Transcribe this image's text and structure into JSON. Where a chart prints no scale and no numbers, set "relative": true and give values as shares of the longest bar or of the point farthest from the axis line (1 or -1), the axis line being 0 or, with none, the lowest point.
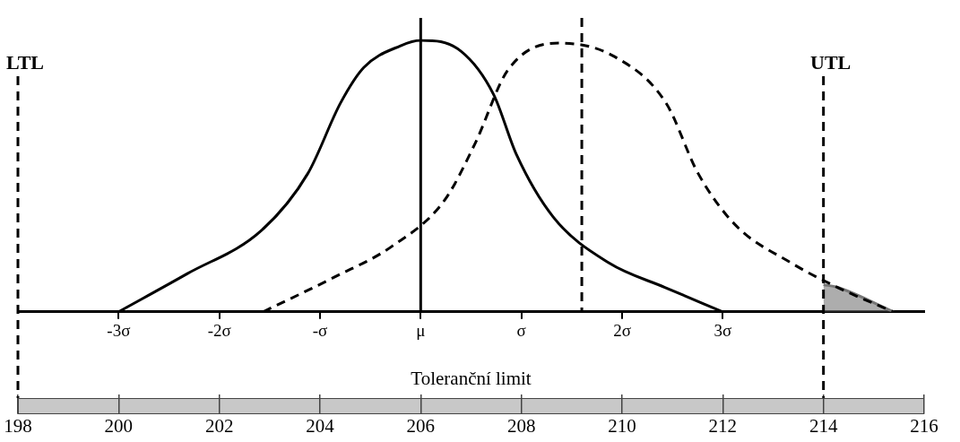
{
  "chart_data": {
    "type": "line",
    "relative": true,
    "xlabel": "Toleranční limit",
    "xlim": [
      198,
      216
    ],
    "xticks": [
      198,
      200,
      202,
      204,
      206,
      208,
      210,
      212,
      214,
      216
    ],
    "x2lim": [
      -4,
      5
    ],
    "x2ticks": [
      {
        "value": -3,
        "label": "-3σ"
      },
      {
        "value": -2,
        "label": "-2σ"
      },
      {
        "value": -1,
        "label": "-σ"
      },
      {
        "value": 0,
        "label": "μ"
      },
      {
        "value": 1,
        "label": "σ"
      },
      {
        "value": 2,
        "label": "2σ"
      },
      {
        "value": 3,
        "label": "3σ"
      }
    ],
    "series": [
      {
        "color": "#000000",
        "line_style": "solid",
        "x": [
          200,
          201.36,
          202.84,
          203.76,
          204.41,
          204.87,
          205.6,
          206,
          206.8,
          207.45,
          207.9,
          208.63,
          209.74,
          210.85,
          212
        ],
        "values": [
          0,
          0.14,
          0.3,
          0.51,
          0.77,
          0.9,
          0.98,
          1,
          0.96,
          0.8,
          0.58,
          0.35,
          0.18,
          0.09,
          0
        ]
      },
      {
        "color": "#000000",
        "line_style": "dashed",
        "x": [
          202.87,
          204.31,
          205.42,
          206.47,
          207.08,
          207.73,
          208.74,
          209.85,
          210.87,
          211.51,
          212.25,
          213.36,
          214.28,
          215.39
        ],
        "values": [
          0,
          0.13,
          0.24,
          0.41,
          0.62,
          0.89,
          0.99,
          0.94,
          0.77,
          0.51,
          0.32,
          0.18,
          0.09,
          0
        ]
      },
      {
        "type": "area",
        "color": "#777777",
        "line_style": "solid",
        "x": [
          214,
          214.28,
          215.39
        ],
        "values": [
          0.1,
          0.09,
          0
        ]
      }
    ],
    "ref_lines": [
      {
        "axis": "x",
        "value": 198,
        "label": "LTL",
        "line_style": "dashed"
      },
      {
        "axis": "x",
        "value": 214,
        "label": "UTL",
        "line_style": "dashed"
      },
      {
        "axis": "x",
        "value": 206,
        "line_style": "solid"
      },
      {
        "axis": "x",
        "value": 209.2,
        "line_style": "dashed"
      }
    ],
    "grid": false,
    "legend": false
  }
}
